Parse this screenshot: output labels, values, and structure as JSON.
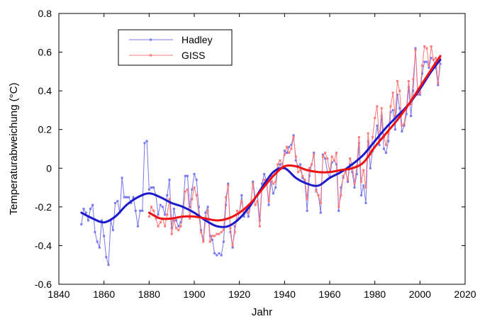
{
  "chart_data": {
    "type": "line",
    "xlabel": "Jahr",
    "ylabel": "Temperaturabweichung (°C)",
    "xlim": [
      1840,
      2020
    ],
    "ylim": [
      -0.6,
      0.8
    ],
    "xticks": [
      1840,
      1860,
      1880,
      1900,
      1920,
      1940,
      1960,
      1980,
      2000,
      2020
    ],
    "yticks": [
      -0.6,
      -0.4,
      -0.2,
      0,
      0.2,
      0.4,
      0.6,
      0.8
    ],
    "xtick_labels": [
      "1840",
      "1860",
      "1880",
      "1900",
      "1920",
      "1940",
      "1960",
      "1980",
      "2000",
      "2020"
    ],
    "ytick_labels": [
      "-0.6",
      "-0.4",
      "-0.2",
      "0",
      "0.2",
      "0.4",
      "0.6",
      "0.8"
    ],
    "legend": {
      "position": "top-left",
      "entries": [
        "Hadley",
        "GISS"
      ]
    },
    "series": [
      {
        "name": "Hadley",
        "color": "#7777ee",
        "x": [
          1850,
          1851,
          1852,
          1853,
          1854,
          1855,
          1856,
          1857,
          1858,
          1859,
          1860,
          1861,
          1862,
          1863,
          1864,
          1865,
          1866,
          1867,
          1868,
          1869,
          1870,
          1871,
          1872,
          1873,
          1874,
          1875,
          1876,
          1877,
          1878,
          1879,
          1880,
          1881,
          1882,
          1883,
          1884,
          1885,
          1886,
          1887,
          1888,
          1889,
          1890,
          1891,
          1892,
          1893,
          1894,
          1895,
          1896,
          1897,
          1898,
          1899,
          1900,
          1901,
          1902,
          1903,
          1904,
          1905,
          1906,
          1907,
          1908,
          1909,
          1910,
          1911,
          1912,
          1913,
          1914,
          1915,
          1916,
          1917,
          1918,
          1919,
          1920,
          1921,
          1922,
          1923,
          1924,
          1925,
          1926,
          1927,
          1928,
          1929,
          1930,
          1931,
          1932,
          1933,
          1934,
          1935,
          1936,
          1937,
          1938,
          1939,
          1940,
          1941,
          1942,
          1943,
          1944,
          1945,
          1946,
          1947,
          1948,
          1949,
          1950,
          1951,
          1952,
          1953,
          1954,
          1955,
          1956,
          1957,
          1958,
          1959,
          1960,
          1961,
          1962,
          1963,
          1964,
          1965,
          1966,
          1967,
          1968,
          1969,
          1970,
          1971,
          1972,
          1973,
          1974,
          1975,
          1976,
          1977,
          1978,
          1979,
          1980,
          1981,
          1982,
          1983,
          1984,
          1985,
          1986,
          1987,
          1988,
          1989,
          1990,
          1991,
          1992,
          1993,
          1994,
          1995,
          1996,
          1997,
          1998,
          1999,
          2000,
          2001,
          2002,
          2003,
          2004,
          2005,
          2006,
          2007,
          2008,
          2009
        ],
        "values": [
          -0.29,
          -0.21,
          -0.23,
          -0.27,
          -0.21,
          -0.19,
          -0.33,
          -0.38,
          -0.41,
          -0.27,
          -0.35,
          -0.46,
          -0.5,
          -0.27,
          -0.32,
          -0.18,
          -0.17,
          -0.23,
          -0.05,
          -0.15,
          -0.15,
          -0.15,
          -0.18,
          -0.15,
          -0.22,
          -0.3,
          -0.22,
          -0.22,
          0.13,
          0.14,
          -0.11,
          -0.1,
          -0.1,
          -0.14,
          -0.24,
          -0.19,
          -0.2,
          -0.24,
          -0.14,
          -0.06,
          -0.31,
          -0.21,
          -0.27,
          -0.3,
          -0.28,
          -0.2,
          -0.04,
          -0.04,
          -0.2,
          -0.11,
          -0.03,
          -0.06,
          -0.2,
          -0.32,
          -0.37,
          -0.23,
          -0.2,
          -0.35,
          -0.37,
          -0.44,
          -0.45,
          -0.44,
          -0.45,
          -0.38,
          -0.19,
          -0.08,
          -0.33,
          -0.41,
          -0.3,
          -0.27,
          -0.23,
          -0.14,
          -0.25,
          -0.22,
          -0.25,
          -0.19,
          -0.07,
          -0.15,
          -0.14,
          -0.27,
          -0.08,
          -0.03,
          -0.07,
          -0.19,
          -0.07,
          -0.13,
          -0.1,
          0.0,
          0.02,
          0.0,
          0.09,
          0.08,
          0.11,
          0.12,
          0.17,
          0.04,
          0.01,
          0.02,
          -0.05,
          -0.07,
          -0.22,
          -0.04,
          0.02,
          0.08,
          -0.11,
          -0.14,
          -0.23,
          0.07,
          0.05,
          -0.02,
          -0.05,
          0.03,
          0.04,
          0.02,
          -0.22,
          -0.1,
          -0.05,
          -0.01,
          -0.07,
          0.02,
          -0.02,
          -0.1,
          -0.03,
          0.13,
          -0.14,
          -0.09,
          -0.18,
          0.14,
          0.0,
          0.09,
          0.14,
          0.22,
          0.12,
          0.27,
          0.1,
          0.08,
          0.14,
          0.29,
          0.3,
          0.2,
          0.38,
          0.31,
          0.19,
          0.22,
          0.28,
          0.42,
          0.27,
          0.4,
          0.62,
          0.4,
          0.38,
          0.49,
          0.55,
          0.55,
          0.52,
          0.57,
          0.56,
          0.52,
          0.43,
          0.54
        ]
      },
      {
        "name": "GISS",
        "color": "#ff7777",
        "x": [
          1880,
          1881,
          1882,
          1883,
          1884,
          1885,
          1886,
          1887,
          1888,
          1889,
          1890,
          1891,
          1892,
          1893,
          1894,
          1895,
          1896,
          1897,
          1898,
          1899,
          1900,
          1901,
          1902,
          1903,
          1904,
          1905,
          1906,
          1907,
          1908,
          1909,
          1910,
          1911,
          1912,
          1913,
          1914,
          1915,
          1916,
          1917,
          1918,
          1919,
          1920,
          1921,
          1922,
          1923,
          1924,
          1925,
          1926,
          1927,
          1928,
          1929,
          1930,
          1931,
          1932,
          1933,
          1934,
          1935,
          1936,
          1937,
          1938,
          1939,
          1940,
          1941,
          1942,
          1943,
          1944,
          1945,
          1946,
          1947,
          1948,
          1949,
          1950,
          1951,
          1952,
          1953,
          1954,
          1955,
          1956,
          1957,
          1958,
          1959,
          1960,
          1961,
          1962,
          1963,
          1964,
          1965,
          1966,
          1967,
          1968,
          1969,
          1970,
          1971,
          1972,
          1973,
          1974,
          1975,
          1976,
          1977,
          1978,
          1979,
          1980,
          1981,
          1982,
          1983,
          1984,
          1985,
          1986,
          1987,
          1988,
          1989,
          1990,
          1991,
          1992,
          1993,
          1994,
          1995,
          1996,
          1997,
          1998,
          1999,
          2000,
          2001,
          2002,
          2003,
          2004,
          2005,
          2006,
          2007,
          2008,
          2009
        ],
        "values": [
          -0.25,
          -0.2,
          -0.22,
          -0.26,
          -0.3,
          -0.28,
          -0.26,
          -0.3,
          -0.24,
          -0.16,
          -0.34,
          -0.27,
          -0.31,
          -0.32,
          -0.3,
          -0.25,
          -0.12,
          -0.11,
          -0.26,
          -0.16,
          -0.1,
          -0.14,
          -0.24,
          -0.33,
          -0.38,
          -0.27,
          -0.22,
          -0.38,
          -0.35,
          -0.35,
          -0.34,
          -0.34,
          -0.33,
          -0.32,
          -0.15,
          -0.09,
          -0.31,
          -0.4,
          -0.33,
          -0.22,
          -0.23,
          -0.17,
          -0.23,
          -0.21,
          -0.23,
          -0.18,
          -0.08,
          -0.19,
          -0.17,
          -0.3,
          -0.1,
          -0.06,
          -0.06,
          -0.17,
          -0.04,
          -0.08,
          -0.07,
          0.02,
          0.04,
          0.02,
          0.07,
          0.11,
          0.08,
          0.1,
          0.16,
          0.06,
          -0.02,
          -0.01,
          -0.04,
          -0.06,
          -0.16,
          0.0,
          0.02,
          0.07,
          -0.12,
          -0.14,
          -0.18,
          0.06,
          0.08,
          0.05,
          -0.02,
          0.06,
          0.04,
          0.08,
          -0.2,
          -0.14,
          -0.04,
          -0.02,
          -0.06,
          0.05,
          0.02,
          -0.08,
          0.01,
          0.16,
          -0.07,
          -0.01,
          -0.1,
          0.18,
          0.07,
          0.16,
          0.26,
          0.32,
          0.14,
          0.31,
          0.16,
          0.12,
          0.18,
          0.32,
          0.39,
          0.27,
          0.45,
          0.4,
          0.22,
          0.23,
          0.31,
          0.45,
          0.33,
          0.46,
          0.61,
          0.38,
          0.39,
          0.53,
          0.63,
          0.62,
          0.53,
          0.63,
          0.56,
          0.57,
          0.44,
          0.57
        ]
      },
      {
        "color": "#1a1acc",
        "smoothed": true,
        "x": [
          1850,
          1855,
          1860,
          1865,
          1870,
          1875,
          1880,
          1885,
          1890,
          1895,
          1900,
          1905,
          1910,
          1915,
          1920,
          1925,
          1930,
          1935,
          1940,
          1945,
          1950,
          1955,
          1960,
          1965,
          1970,
          1975,
          1980,
          1985,
          1990,
          1995,
          2000,
          2005,
          2009
        ],
        "values": [
          -0.23,
          -0.26,
          -0.28,
          -0.25,
          -0.19,
          -0.15,
          -0.13,
          -0.15,
          -0.18,
          -0.2,
          -0.23,
          -0.27,
          -0.3,
          -0.3,
          -0.26,
          -0.19,
          -0.1,
          -0.02,
          0.0,
          -0.05,
          -0.08,
          -0.09,
          -0.05,
          -0.02,
          0.02,
          0.07,
          0.14,
          0.21,
          0.27,
          0.33,
          0.41,
          0.5,
          0.56
        ]
      },
      {
        "color": "#ee1111",
        "smoothed": true,
        "x": [
          1880,
          1885,
          1890,
          1895,
          1900,
          1905,
          1910,
          1915,
          1920,
          1925,
          1930,
          1935,
          1940,
          1945,
          1950,
          1955,
          1960,
          1965,
          1970,
          1975,
          1980,
          1985,
          1990,
          1995,
          2000,
          2005,
          2009
        ],
        "values": [
          -0.23,
          -0.26,
          -0.26,
          -0.25,
          -0.25,
          -0.26,
          -0.27,
          -0.26,
          -0.23,
          -0.18,
          -0.11,
          -0.04,
          0.01,
          0.01,
          -0.01,
          -0.02,
          -0.02,
          -0.01,
          0.0,
          0.03,
          0.11,
          0.18,
          0.25,
          0.33,
          0.42,
          0.51,
          0.58
        ]
      }
    ]
  }
}
